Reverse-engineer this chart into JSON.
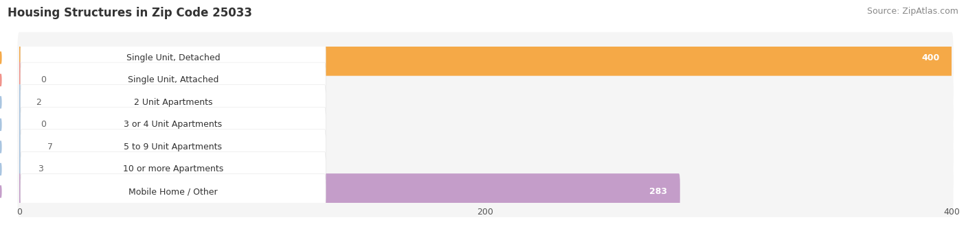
{
  "title": "Housing Structures in Zip Code 25033",
  "source": "Source: ZipAtlas.com",
  "categories": [
    "Single Unit, Detached",
    "Single Unit, Attached",
    "2 Unit Apartments",
    "3 or 4 Unit Apartments",
    "5 to 9 Unit Apartments",
    "10 or more Apartments",
    "Mobile Home / Other"
  ],
  "values": [
    400,
    0,
    2,
    0,
    7,
    3,
    283
  ],
  "bar_colors": [
    "#F5A947",
    "#F0928A",
    "#A8C4E0",
    "#A8C4E0",
    "#A8C4E0",
    "#A8C4E0",
    "#C49DC9"
  ],
  "row_bg_colors": [
    "#F5F5F5",
    "#F5F5F5",
    "#F5F5F5",
    "#F5F5F5",
    "#F5F5F5",
    "#F5F5F5",
    "#F5F5F5"
  ],
  "dot_colors": [
    "#F5A947",
    "#F0928A",
    "#A8C4E0",
    "#A8C4E0",
    "#A8C4E0",
    "#A8C4E0",
    "#C49DC9"
  ],
  "xlim": [
    0,
    400
  ],
  "xticks": [
    0,
    200,
    400
  ],
  "grid_color": "#CCCCCC",
  "title_fontsize": 12,
  "source_fontsize": 9,
  "label_fontsize": 9,
  "value_fontsize": 9,
  "background_color": "#FFFFFF",
  "value_threshold": 150
}
